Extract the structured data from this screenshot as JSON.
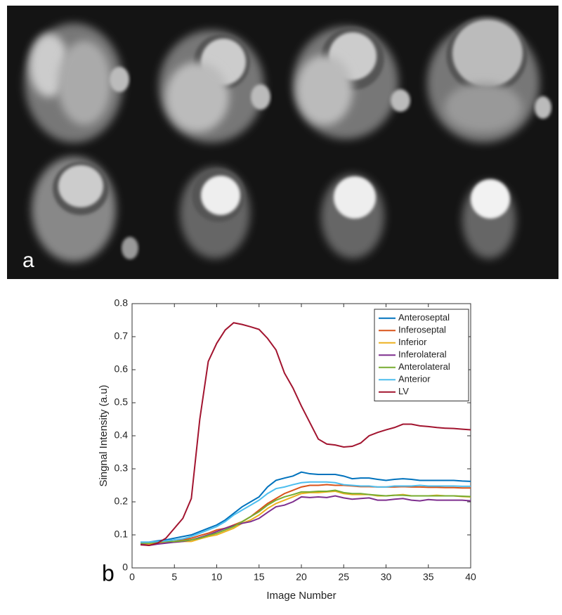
{
  "image_panel": {
    "label": "a"
  },
  "chart_data": {
    "type": "line",
    "panel_label": "b",
    "x_label": "Image Number",
    "y_label": "Singnal Intensity (a.u)",
    "xlim": [
      0,
      40
    ],
    "xticks": [
      0,
      5,
      10,
      15,
      20,
      25,
      30,
      35,
      40
    ],
    "ylim": [
      0,
      0.8
    ],
    "yticks": [
      0,
      0.1,
      0.2,
      0.3,
      0.4,
      0.5,
      0.6,
      0.7,
      0.8
    ],
    "legend": "upper right",
    "x": [
      1,
      2,
      3,
      4,
      5,
      6,
      7,
      8,
      9,
      10,
      11,
      12,
      13,
      14,
      15,
      16,
      17,
      18,
      19,
      20,
      21,
      22,
      23,
      24,
      25,
      26,
      27,
      28,
      29,
      30,
      31,
      32,
      33,
      34,
      35,
      36,
      37,
      38,
      39,
      40
    ],
    "series": [
      {
        "name": "Anteroseptal",
        "color": "#0072bd",
        "values": [
          0.078,
          0.078,
          0.082,
          0.085,
          0.09,
          0.095,
          0.1,
          0.11,
          0.12,
          0.13,
          0.145,
          0.165,
          0.185,
          0.2,
          0.215,
          0.245,
          0.265,
          0.272,
          0.278,
          0.29,
          0.285,
          0.283,
          0.283,
          0.283,
          0.278,
          0.27,
          0.272,
          0.272,
          0.268,
          0.265,
          0.268,
          0.27,
          0.268,
          0.265,
          0.265,
          0.265,
          0.265,
          0.265,
          0.263,
          0.262
        ]
      },
      {
        "name": "Inferoseptal",
        "color": "#d95319",
        "values": [
          0.072,
          0.07,
          0.075,
          0.078,
          0.08,
          0.085,
          0.09,
          0.098,
          0.105,
          0.115,
          0.12,
          0.13,
          0.14,
          0.155,
          0.175,
          0.195,
          0.21,
          0.225,
          0.235,
          0.245,
          0.25,
          0.25,
          0.252,
          0.25,
          0.25,
          0.248,
          0.246,
          0.246,
          0.245,
          0.245,
          0.245,
          0.246,
          0.245,
          0.245,
          0.244,
          0.244,
          0.243,
          0.243,
          0.242,
          0.242
        ]
      },
      {
        "name": "Inferior",
        "color": "#edb120",
        "values": [
          0.075,
          0.072,
          0.075,
          0.078,
          0.078,
          0.08,
          0.08,
          0.088,
          0.095,
          0.1,
          0.11,
          0.12,
          0.135,
          0.145,
          0.16,
          0.18,
          0.195,
          0.205,
          0.215,
          0.225,
          0.228,
          0.228,
          0.23,
          0.232,
          0.225,
          0.222,
          0.222,
          0.222,
          0.218,
          0.218,
          0.22,
          0.222,
          0.218,
          0.218,
          0.218,
          0.22,
          0.218,
          0.218,
          0.216,
          0.215
        ]
      },
      {
        "name": "Inferolateral",
        "color": "#7e2f8e",
        "values": [
          0.072,
          0.068,
          0.072,
          0.075,
          0.078,
          0.08,
          0.085,
          0.092,
          0.1,
          0.11,
          0.12,
          0.128,
          0.135,
          0.14,
          0.15,
          0.168,
          0.185,
          0.19,
          0.2,
          0.215,
          0.213,
          0.215,
          0.213,
          0.218,
          0.212,
          0.208,
          0.21,
          0.212,
          0.205,
          0.205,
          0.208,
          0.21,
          0.205,
          0.203,
          0.207,
          0.205,
          0.205,
          0.205,
          0.205,
          0.203
        ]
      },
      {
        "name": "Anterolateral",
        "color": "#77ac30",
        "values": [
          0.075,
          0.075,
          0.078,
          0.08,
          0.08,
          0.082,
          0.085,
          0.09,
          0.098,
          0.105,
          0.115,
          0.125,
          0.14,
          0.155,
          0.17,
          0.19,
          0.205,
          0.215,
          0.222,
          0.23,
          0.23,
          0.232,
          0.232,
          0.235,
          0.228,
          0.225,
          0.225,
          0.222,
          0.22,
          0.218,
          0.22,
          0.22,
          0.218,
          0.218,
          0.218,
          0.218,
          0.218,
          0.218,
          0.217,
          0.216
        ]
      },
      {
        "name": "Anterior",
        "color": "#4dbeee",
        "values": [
          0.078,
          0.078,
          0.08,
          0.082,
          0.085,
          0.088,
          0.095,
          0.105,
          0.115,
          0.125,
          0.14,
          0.16,
          0.175,
          0.19,
          0.205,
          0.225,
          0.24,
          0.245,
          0.252,
          0.258,
          0.26,
          0.26,
          0.26,
          0.258,
          0.252,
          0.25,
          0.248,
          0.248,
          0.245,
          0.245,
          0.248,
          0.248,
          0.248,
          0.25,
          0.248,
          0.248,
          0.248,
          0.248,
          0.247,
          0.247
        ]
      },
      {
        "name": "LV",
        "color": "#a2142f",
        "values": [
          0.07,
          0.068,
          0.075,
          0.09,
          0.12,
          0.15,
          0.21,
          0.45,
          0.625,
          0.68,
          0.72,
          0.742,
          0.737,
          0.73,
          0.722,
          0.695,
          0.66,
          0.59,
          0.545,
          0.49,
          0.44,
          0.39,
          0.375,
          0.372,
          0.366,
          0.368,
          0.378,
          0.4,
          0.41,
          0.418,
          0.425,
          0.435,
          0.435,
          0.43,
          0.428,
          0.425,
          0.423,
          0.422,
          0.42,
          0.418
        ]
      }
    ]
  }
}
